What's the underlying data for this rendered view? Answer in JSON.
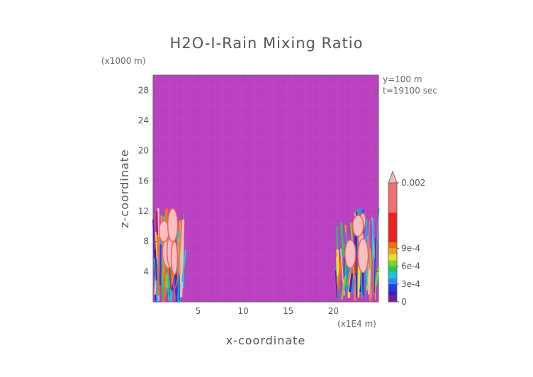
{
  "chart_data": {
    "type": "heatmap",
    "title": "H2O-I-Rain Mixing Ratio",
    "xlabel": "x-coordinate",
    "ylabel": "z-coordinate",
    "x_multiplier": "(x1E4 m)",
    "y_multiplier": "(x1000 m)",
    "annotations": [
      "y=100 m",
      "t=19100 sec"
    ],
    "xlim": [
      0,
      25
    ],
    "ylim": [
      0,
      30
    ],
    "x_ticks": [
      5,
      10,
      15,
      20
    ],
    "y_ticks": [
      4,
      8,
      12,
      16,
      20,
      24,
      28
    ],
    "colorbar": {
      "tick_labels": [
        "0",
        "3e-4",
        "6e-4",
        "9e-4",
        "0.002"
      ],
      "tick_values": [
        0,
        0.0003,
        0.0006,
        0.0009,
        0.002
      ],
      "levels": [
        {
          "value": 0,
          "color": "#7a1aa0"
        },
        {
          "value": 0.0001,
          "color": "#3a1cc8"
        },
        {
          "value": 0.0002,
          "color": "#1f3ee8"
        },
        {
          "value": 0.0003,
          "color": "#2b8cf0"
        },
        {
          "value": 0.0004,
          "color": "#18c8d8"
        },
        {
          "value": 0.0005,
          "color": "#20c860"
        },
        {
          "value": 0.0006,
          "color": "#7ad820"
        },
        {
          "value": 0.0007,
          "color": "#e8e020"
        },
        {
          "value": 0.0008,
          "color": "#f0a020"
        },
        {
          "value": 0.0009,
          "color": "#f07010"
        },
        {
          "value": 0.001,
          "color": "#f02020"
        },
        {
          "value": 0.0015,
          "color": "#f07070"
        },
        {
          "value": 0.002,
          "color": "#f8b8b8"
        }
      ]
    },
    "background_value_color": "#b83cc0",
    "regions": [
      {
        "x": [
          0.2,
          3.4
        ],
        "z_top": 12.4,
        "note": "left convective plume"
      },
      {
        "x": [
          20.4,
          24.8
        ],
        "z_top": 12.4,
        "note": "right convective plume"
      }
    ]
  }
}
